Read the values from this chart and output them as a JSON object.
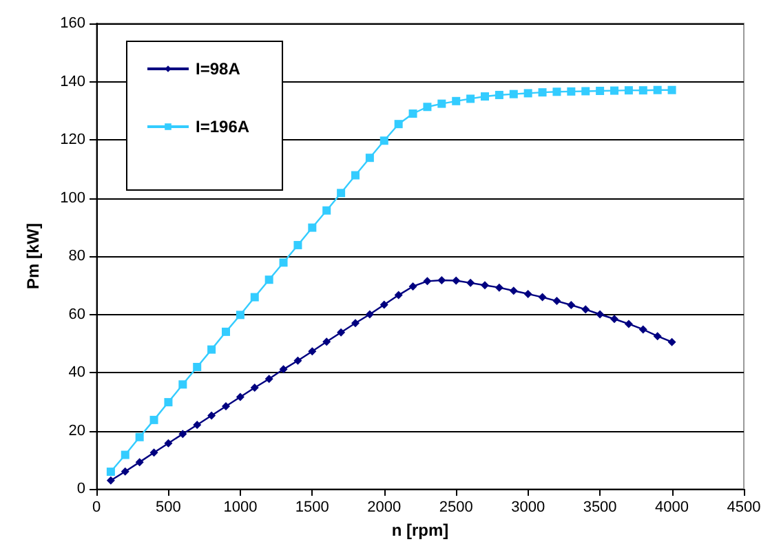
{
  "chart_data": {
    "type": "line",
    "xlabel": "n [rpm]",
    "ylabel": "Pm [kW]",
    "x": [
      100,
      200,
      300,
      400,
      500,
      600,
      700,
      800,
      900,
      1000,
      1100,
      1200,
      1300,
      1400,
      1500,
      1600,
      1700,
      1800,
      1900,
      2000,
      2100,
      2200,
      2300,
      2400,
      2500,
      2600,
      2700,
      2800,
      2900,
      3000,
      3100,
      3200,
      3300,
      3400,
      3500,
      3600,
      3700,
      3800,
      3900,
      4000
    ],
    "series": [
      {
        "name": "I=98A",
        "color": "#000080",
        "marker": "diamond",
        "values": [
          2.9,
          6,
          9.2,
          12.5,
          15.7,
          18.9,
          22,
          25.2,
          28.4,
          31.6,
          34.8,
          37.8,
          41.1,
          44.1,
          47.3,
          50.6,
          53.8,
          57,
          60,
          63.3,
          66.6,
          69.6,
          71.4,
          71.7,
          71.6,
          70.8,
          70,
          69.2,
          68.1,
          67,
          65.9,
          64.6,
          63.2,
          61.7,
          60,
          58.4,
          56.7,
          54.8,
          52.5,
          50.5
        ]
      },
      {
        "name": "I=196A",
        "color": "#33ccff",
        "marker": "square",
        "values": [
          5.9,
          11.7,
          17.8,
          23.7,
          29.8,
          35.9,
          41.9,
          47.9,
          54,
          59.8,
          65.9,
          71.9,
          77.8,
          83.8,
          89.8,
          95.7,
          101.7,
          107.8,
          113.8,
          119.7,
          125.4,
          129,
          131.3,
          132.4,
          133.3,
          134.1,
          134.9,
          135.4,
          135.7,
          136,
          136.3,
          136.5,
          136.6,
          136.7,
          136.8,
          136.9,
          137,
          137,
          137.1,
          137.1
        ]
      }
    ],
    "xlim": [
      0,
      4500
    ],
    "xticks": [
      0,
      500,
      1000,
      1500,
      2000,
      2500,
      3000,
      3500,
      4000,
      4500
    ],
    "ylim": [
      0,
      160
    ],
    "yticks": [
      0,
      20,
      40,
      60,
      80,
      100,
      120,
      140,
      160
    ],
    "grid": "y",
    "legend": "top left",
    "line_style": "solid"
  }
}
